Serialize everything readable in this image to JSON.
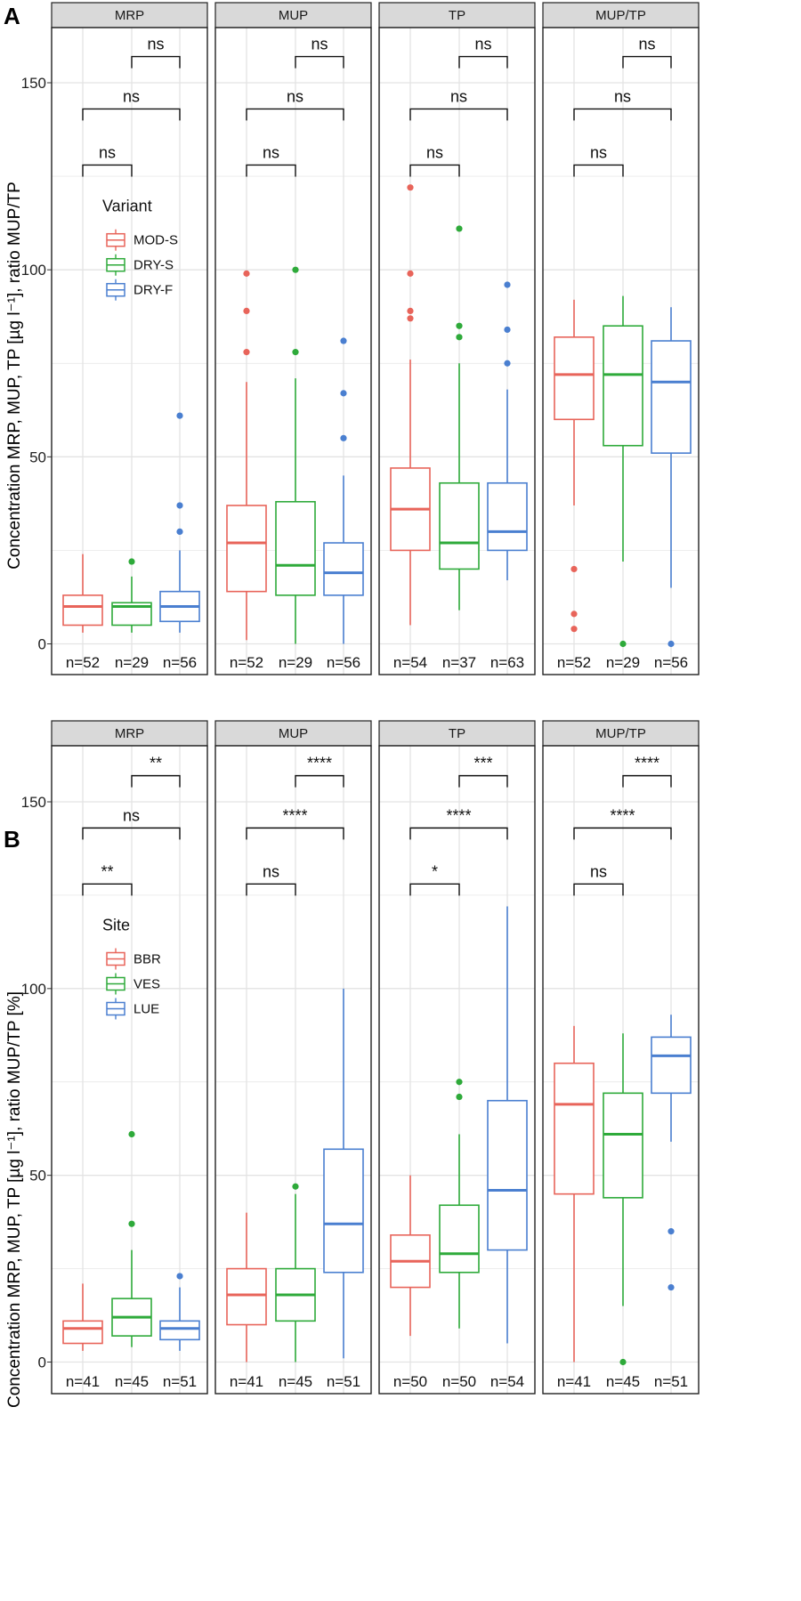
{
  "figure": {
    "colors": [
      "#E8645A",
      "#2EAA3A",
      "#4A7FD0"
    ],
    "grid_color": "#E3E3E3",
    "strip_fill": "#D9D9D9"
  },
  "chart_data": [
    {
      "type": "boxplot",
      "panel_letter": "A",
      "ylabel": "Concentration MRP, MUP, TP [µg l⁻¹], ratio MUP/TP",
      "ylim": [
        -3,
        165
      ],
      "yticks": [
        0,
        50,
        100,
        150
      ],
      "legend": {
        "title": "Variant",
        "entries": [
          "MOD-S",
          "DRY-S",
          "DRY-F"
        ]
      },
      "facets": [
        {
          "label": "MRP",
          "boxes": [
            {
              "group": "MOD-S",
              "q1": 5,
              "median": 10,
              "q3": 13,
              "lo": 3,
              "hi": 24,
              "outliers": [],
              "n": "n=52"
            },
            {
              "group": "DRY-S",
              "q1": 5,
              "median": 10,
              "q3": 11,
              "lo": 3,
              "hi": 18,
              "outliers": [
                22
              ],
              "n": "n=29"
            },
            {
              "group": "DRY-F",
              "q1": 6,
              "median": 10,
              "q3": 14,
              "lo": 3,
              "hi": 25,
              "outliers": [
                30,
                37,
                61
              ],
              "n": "n=56"
            }
          ],
          "comparisons": [
            {
              "from": 0,
              "to": 1,
              "label": "ns"
            },
            {
              "from": 0,
              "to": 2,
              "label": "ns"
            },
            {
              "from": 1,
              "to": 2,
              "label": "ns"
            }
          ]
        },
        {
          "label": "MUP",
          "boxes": [
            {
              "group": "MOD-S",
              "q1": 14,
              "median": 27,
              "q3": 37,
              "lo": 1,
              "hi": 70,
              "outliers": [
                78,
                89,
                99
              ],
              "n": "n=52"
            },
            {
              "group": "DRY-S",
              "q1": 13,
              "median": 21,
              "q3": 38,
              "lo": 0,
              "hi": 71,
              "outliers": [
                78,
                100
              ],
              "n": "n=29"
            },
            {
              "group": "DRY-F",
              "q1": 13,
              "median": 19,
              "q3": 27,
              "lo": 0,
              "hi": 45,
              "outliers": [
                55,
                67,
                81
              ],
              "n": "n=56"
            }
          ],
          "comparisons": [
            {
              "from": 0,
              "to": 1,
              "label": "ns"
            },
            {
              "from": 0,
              "to": 2,
              "label": "ns"
            },
            {
              "from": 1,
              "to": 2,
              "label": "ns"
            }
          ]
        },
        {
          "label": "TP",
          "boxes": [
            {
              "group": "MOD-S",
              "q1": 25,
              "median": 36,
              "q3": 47,
              "lo": 5,
              "hi": 76,
              "outliers": [
                87,
                89,
                99,
                122
              ],
              "n": "n=54"
            },
            {
              "group": "DRY-S",
              "q1": 20,
              "median": 27,
              "q3": 43,
              "lo": 9,
              "hi": 75,
              "outliers": [
                82,
                85,
                111
              ],
              "n": "n=37"
            },
            {
              "group": "DRY-F",
              "q1": 25,
              "median": 30,
              "q3": 43,
              "lo": 17,
              "hi": 68,
              "outliers": [
                75,
                84,
                96
              ],
              "n": "n=63"
            }
          ],
          "comparisons": [
            {
              "from": 0,
              "to": 1,
              "label": "ns"
            },
            {
              "from": 0,
              "to": 2,
              "label": "ns"
            },
            {
              "from": 1,
              "to": 2,
              "label": "ns"
            }
          ]
        },
        {
          "label": "MUP/TP",
          "boxes": [
            {
              "group": "MOD-S",
              "q1": 60,
              "median": 72,
              "q3": 82,
              "lo": 37,
              "hi": 92,
              "outliers": [
                4,
                8,
                20
              ],
              "n": "n=52"
            },
            {
              "group": "DRY-S",
              "q1": 53,
              "median": 72,
              "q3": 85,
              "lo": 22,
              "hi": 93,
              "outliers": [
                0
              ],
              "n": "n=29"
            },
            {
              "group": "DRY-F",
              "q1": 51,
              "median": 70,
              "q3": 81,
              "lo": 15,
              "hi": 90,
              "outliers": [
                0
              ],
              "n": "n=56"
            }
          ],
          "comparisons": [
            {
              "from": 0,
              "to": 1,
              "label": "ns"
            },
            {
              "from": 0,
              "to": 2,
              "label": "ns"
            },
            {
              "from": 1,
              "to": 2,
              "label": "ns"
            }
          ]
        }
      ]
    },
    {
      "type": "boxplot",
      "panel_letter": "B",
      "ylabel": "Concentration MRP, MUP, TP [µg l⁻¹], ratio MUP/TP [%]",
      "ylim": [
        -3,
        165
      ],
      "yticks": [
        0,
        50,
        100,
        150
      ],
      "legend": {
        "title": "Site",
        "entries": [
          "BBR",
          "VES",
          "LUE"
        ]
      },
      "facets": [
        {
          "label": "MRP",
          "boxes": [
            {
              "group": "BBR",
              "q1": 5,
              "median": 9,
              "q3": 11,
              "lo": 3,
              "hi": 21,
              "outliers": [],
              "n": "n=41"
            },
            {
              "group": "VES",
              "q1": 7,
              "median": 12,
              "q3": 17,
              "lo": 4,
              "hi": 30,
              "outliers": [
                37,
                61
              ],
              "n": "n=45"
            },
            {
              "group": "LUE",
              "q1": 6,
              "median": 9,
              "q3": 11,
              "lo": 3,
              "hi": 20,
              "outliers": [
                23
              ],
              "n": "n=51"
            }
          ],
          "comparisons": [
            {
              "from": 0,
              "to": 1,
              "label": "**"
            },
            {
              "from": 0,
              "to": 2,
              "label": "ns"
            },
            {
              "from": 1,
              "to": 2,
              "label": "**"
            }
          ]
        },
        {
          "label": "MUP",
          "boxes": [
            {
              "group": "BBR",
              "q1": 10,
              "median": 18,
              "q3": 25,
              "lo": 0,
              "hi": 40,
              "outliers": [],
              "n": "n=41"
            },
            {
              "group": "VES",
              "q1": 11,
              "median": 18,
              "q3": 25,
              "lo": 0,
              "hi": 45,
              "outliers": [
                47
              ],
              "n": "n=45"
            },
            {
              "group": "LUE",
              "q1": 24,
              "median": 37,
              "q3": 57,
              "lo": 1,
              "hi": 100,
              "outliers": [],
              "n": "n=51"
            }
          ],
          "comparisons": [
            {
              "from": 0,
              "to": 1,
              "label": "ns"
            },
            {
              "from": 0,
              "to": 2,
              "label": "****"
            },
            {
              "from": 1,
              "to": 2,
              "label": "****"
            }
          ]
        },
        {
          "label": "TP",
          "boxes": [
            {
              "group": "BBR",
              "q1": 20,
              "median": 27,
              "q3": 34,
              "lo": 7,
              "hi": 50,
              "outliers": [],
              "n": "n=50"
            },
            {
              "group": "VES",
              "q1": 24,
              "median": 29,
              "q3": 42,
              "lo": 9,
              "hi": 61,
              "outliers": [
                71,
                75
              ],
              "n": "n=50"
            },
            {
              "group": "LUE",
              "q1": 30,
              "median": 46,
              "q3": 70,
              "lo": 5,
              "hi": 122,
              "outliers": [],
              "n": "n=54"
            }
          ],
          "comparisons": [
            {
              "from": 0,
              "to": 1,
              "label": "*"
            },
            {
              "from": 0,
              "to": 2,
              "label": "****"
            },
            {
              "from": 1,
              "to": 2,
              "label": "***"
            }
          ]
        },
        {
          "label": "MUP/TP",
          "boxes": [
            {
              "group": "BBR",
              "q1": 45,
              "median": 69,
              "q3": 80,
              "lo": 0,
              "hi": 90,
              "outliers": [],
              "n": "n=41"
            },
            {
              "group": "VES",
              "q1": 44,
              "median": 61,
              "q3": 72,
              "lo": 15,
              "hi": 88,
              "outliers": [
                0
              ],
              "n": "n=45"
            },
            {
              "group": "LUE",
              "q1": 72,
              "median": 82,
              "q3": 87,
              "lo": 59,
              "hi": 93,
              "outliers": [
                20,
                35
              ],
              "n": "n=51"
            }
          ],
          "comparisons": [
            {
              "from": 0,
              "to": 1,
              "label": "ns"
            },
            {
              "from": 0,
              "to": 2,
              "label": "****"
            },
            {
              "from": 1,
              "to": 2,
              "label": "****"
            }
          ]
        }
      ]
    }
  ]
}
